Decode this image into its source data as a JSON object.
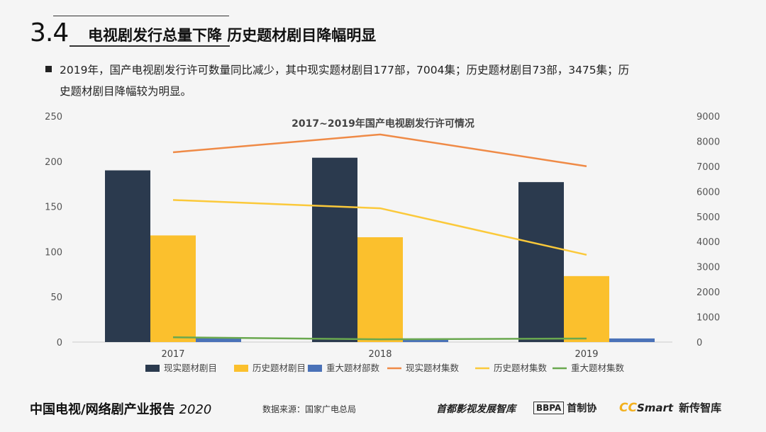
{
  "header": {
    "section_number": "3.4",
    "section_title": "电视剧发行总量下降  历史题材剧目降幅明显"
  },
  "summary": {
    "line1": "2019年，国产电视剧发行许可数量同比减少，其中现实题材剧目177部，7004集；历史题材剧目73部，3475集；历",
    "line2": "史题材剧目降幅较为明显。"
  },
  "chart_data": {
    "type": "bar",
    "title": "2017~2019年国产电视剧发行许可情况",
    "categories": [
      "2017",
      "2018",
      "2019"
    ],
    "y_left": {
      "ylim": [
        0,
        250
      ],
      "ticks": [
        "0",
        "50",
        "100",
        "150",
        "200",
        "250"
      ]
    },
    "y_right": {
      "ylim": [
        0,
        9000
      ],
      "ticks": [
        "0",
        "1000",
        "2000",
        "3000",
        "4000",
        "5000",
        "6000",
        "7000",
        "8000",
        "9000"
      ]
    },
    "bar_series": [
      {
        "name": "现实题材剧目",
        "values": [
          190,
          204,
          177
        ],
        "color": "#2b3a4e",
        "axis": "left"
      },
      {
        "name": "历史题材剧目",
        "values": [
          118,
          116,
          73
        ],
        "color": "#fbc02d",
        "axis": "left"
      },
      {
        "name": "重大题材部数",
        "values": [
          5,
          4,
          4
        ],
        "color": "#4a72b8",
        "axis": "left"
      }
    ],
    "line_series": [
      {
        "name": "现实题材集数",
        "values": [
          7560,
          8270,
          7004
        ],
        "color": "#ef8a46",
        "axis": "right"
      },
      {
        "name": "历史题材集数",
        "values": [
          5660,
          5330,
          3475
        ],
        "color": "#fbc93a",
        "axis": "right"
      },
      {
        "name": "重大题材集数",
        "values": [
          190,
          110,
          140
        ],
        "color": "#6aa84f",
        "axis": "right"
      }
    ],
    "legend_position": "bottom",
    "grid": false
  },
  "footer": {
    "report_title": "中国电视/网络剧产业报告",
    "report_year": "2020",
    "source": "数据来源：国家广电总局",
    "logo_capital": "首都影视发展智库",
    "logo_bbpa_box": "BBPA",
    "logo_bbpa_text": "首制协",
    "logo_cc": "CC",
    "logo_smart": "Smart",
    "logo_xinchuan": "新传智库"
  }
}
